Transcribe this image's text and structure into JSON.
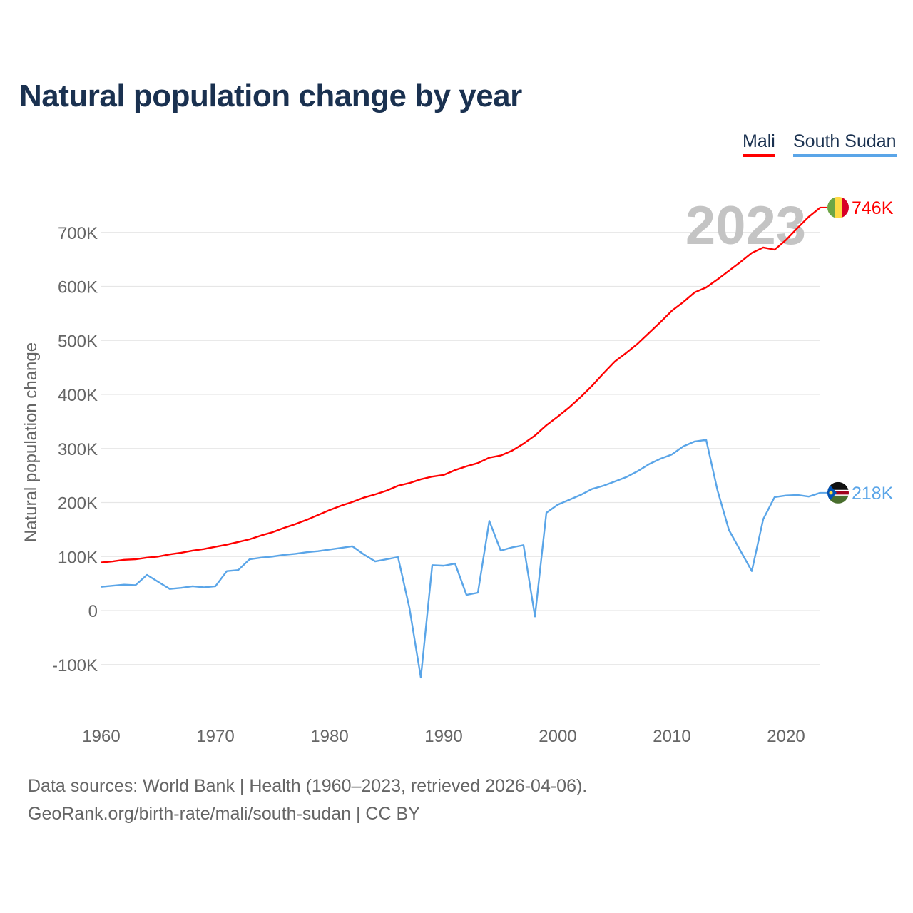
{
  "title": "Natural population change by year",
  "legend": [
    {
      "label": "Mali",
      "color": "#ff0000"
    },
    {
      "label": "South Sudan",
      "color": "#5aa5e8"
    }
  ],
  "footer": {
    "line1": "Data sources: World Bank | Health (1960–2023, retrieved 2026-04-06).",
    "line2": "GeoRank.org/birth-rate/mali/south-sudan | CC BY"
  },
  "chart_data": {
    "type": "line",
    "title": "Natural population change by year",
    "xlabel": "",
    "ylabel": "Natural population change",
    "year_watermark": "2023",
    "xlim": [
      1960,
      2023
    ],
    "ylim": [
      -170000,
      780000
    ],
    "xticks": [
      1960,
      1970,
      1980,
      1990,
      2000,
      2010,
      2020
    ],
    "yticks": [
      {
        "v": -100000,
        "label": "-100K"
      },
      {
        "v": 0,
        "label": "0"
      },
      {
        "v": 100000,
        "label": "100K"
      },
      {
        "v": 200000,
        "label": "200K"
      },
      {
        "v": 300000,
        "label": "300K"
      },
      {
        "v": 400000,
        "label": "400K"
      },
      {
        "v": 500000,
        "label": "500K"
      },
      {
        "v": 600000,
        "label": "600K"
      },
      {
        "v": 700000,
        "label": "700K"
      }
    ],
    "grid": true,
    "legend_position": "top-right",
    "x_start": 1960,
    "series": [
      {
        "name": "Mali",
        "color": "#ff0000",
        "end_label": "746K",
        "flag": "mali",
        "values_k": [
          89,
          91,
          94,
          95,
          98,
          100,
          104,
          107,
          111,
          114,
          118,
          122,
          127,
          132,
          139,
          145,
          153,
          160,
          168,
          177,
          186,
          194,
          201,
          209,
          215,
          222,
          231,
          236,
          243,
          248,
          251,
          260,
          267,
          273,
          283,
          287,
          296,
          309,
          324,
          343,
          359,
          376,
          395,
          416,
          439,
          461,
          477,
          494,
          514,
          534,
          555,
          571,
          589,
          598,
          613,
          629,
          645,
          662,
          672,
          668,
          686,
          708,
          729,
          746
        ]
      },
      {
        "name": "South Sudan",
        "color": "#5aa5e8",
        "end_label": "218K",
        "flag": "south-sudan",
        "values_k": [
          44,
          46,
          48,
          47,
          66,
          53,
          40,
          42,
          45,
          43,
          45,
          73,
          75,
          95,
          98,
          100,
          103,
          105,
          108,
          110,
          113,
          116,
          119,
          104,
          91,
          95,
          99,
          5,
          -124,
          84,
          83,
          87,
          29,
          33,
          166,
          111,
          117,
          121,
          -11,
          181,
          196,
          205,
          214,
          225,
          231,
          239,
          247,
          258,
          271,
          281,
          289,
          304,
          313,
          316,
          222,
          149,
          111,
          73,
          169,
          210,
          213,
          214,
          211,
          218
        ]
      }
    ]
  }
}
